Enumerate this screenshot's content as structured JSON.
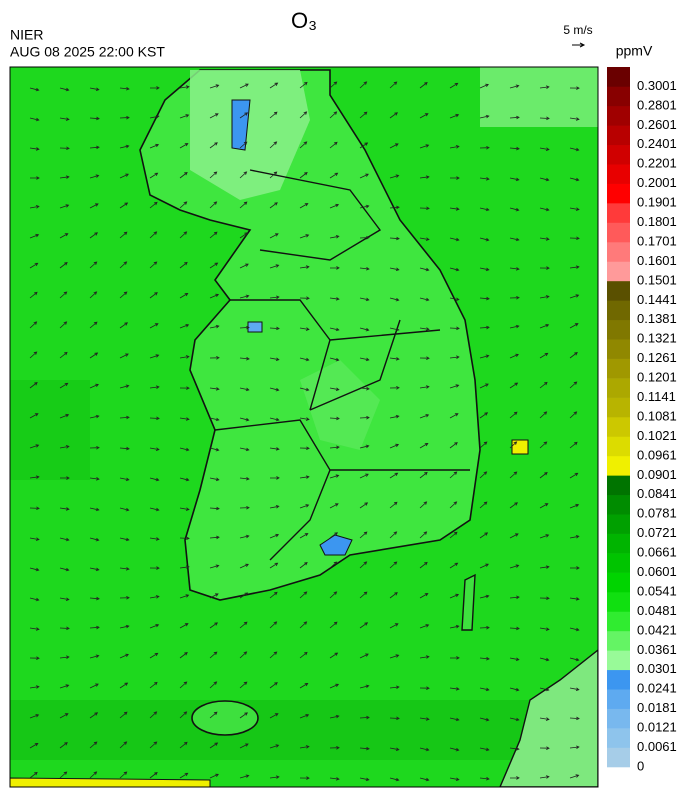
{
  "header": {
    "title": "O₃",
    "agency": "NIER",
    "datetime": "AUG 08 2025 22:00 KST",
    "wind_scale": "5 m/s"
  },
  "colorbar": {
    "unit": "ppmV",
    "levels": [
      0,
      0.0061,
      0.0121,
      0.0181,
      0.0241,
      0.0301,
      0.0361,
      0.0421,
      0.0481,
      0.0541,
      0.0601,
      0.0661,
      0.0721,
      0.0781,
      0.0841,
      0.0901,
      0.0961,
      0.1021,
      0.1081,
      0.1141,
      0.1201,
      0.1261,
      0.1321,
      0.1381,
      0.1441,
      0.1501,
      0.1601,
      0.1701,
      0.1801,
      0.1901,
      0.2001,
      0.2201,
      0.2401,
      0.2601,
      0.2801,
      0.3001
    ],
    "colors": [
      "#a6cde8",
      "#8ec4ec",
      "#78b8ee",
      "#5eaaf0",
      "#3c96f0",
      "#98fa98",
      "#64f464",
      "#30ec30",
      "#10e010",
      "#00d400",
      "#00c400",
      "#00b400",
      "#00a000",
      "#008c00",
      "#007400",
      "#f0f000",
      "#dcdc00",
      "#ccc800",
      "#b8b400",
      "#aca800",
      "#a09800",
      "#908800",
      "#807800",
      "#706800",
      "#5a5000",
      "#ff9a9a",
      "#ff7a7a",
      "#ff5a5a",
      "#ff3a3a",
      "#ff0000",
      "#e80000",
      "#d00000",
      "#b80000",
      "#a00000",
      "#880000",
      "#6a0000"
    ]
  }
}
